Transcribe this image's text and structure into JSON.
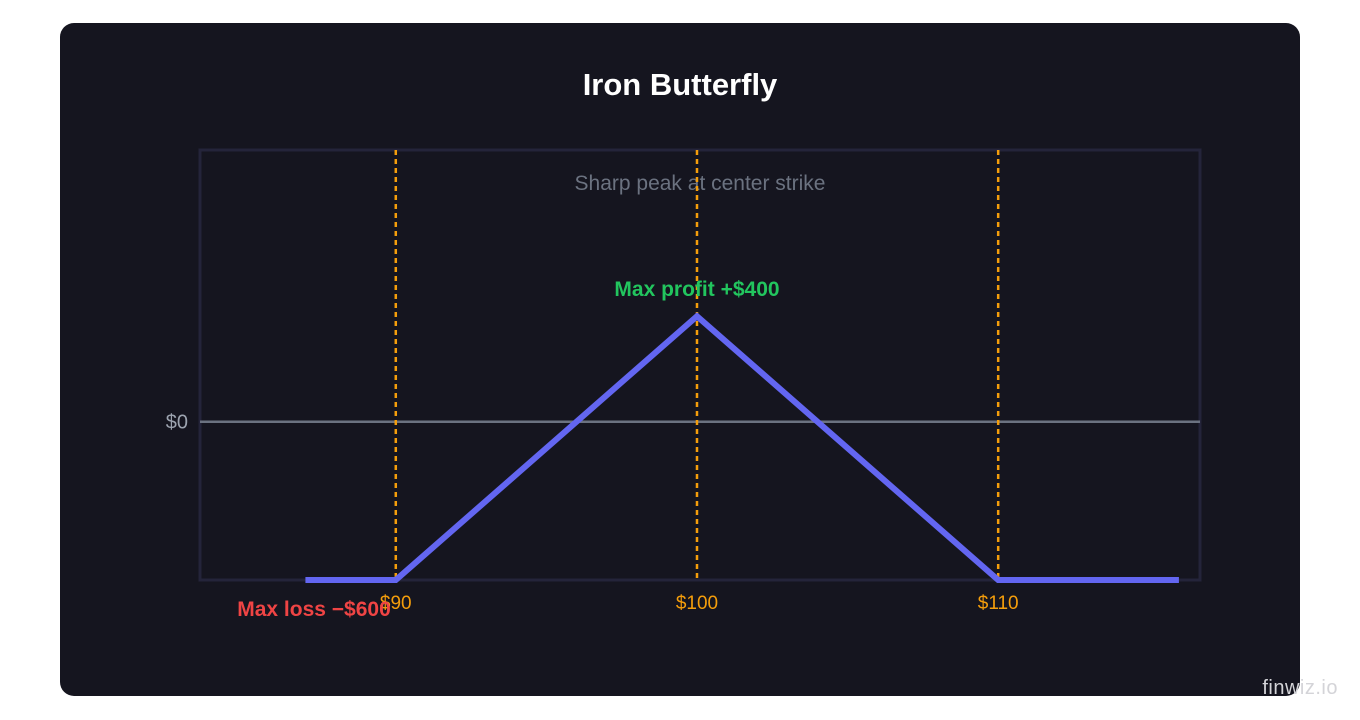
{
  "title": "Iron Butterfly",
  "watermark": "finwiz.io",
  "chart_data": {
    "type": "line",
    "title": "Iron Butterfly",
    "subtitle": "Sharp peak at center strike",
    "x": [
      87,
      90,
      100,
      110,
      116
    ],
    "series": [
      {
        "values": [
          -600,
          -600,
          400,
          -600,
          -600
        ]
      }
    ],
    "xlim": [
      83.5,
      116.7
    ],
    "ylim": [
      -600,
      1030
    ],
    "x_ticks": [
      {
        "value": 90,
        "label": "$90"
      },
      {
        "value": 100,
        "label": "$100"
      },
      {
        "value": 110,
        "label": "$110"
      }
    ],
    "y_ticks": [
      {
        "value": 0,
        "label": "$0"
      }
    ],
    "strike_lines": [
      90,
      100,
      110
    ],
    "annotations": [
      {
        "text": "Max profit +$400",
        "x": 100,
        "y": 400,
        "color": "#22c55e"
      },
      {
        "text": "Max loss −$600",
        "x": 90,
        "y": -600,
        "color": "#ef4444"
      }
    ],
    "colors": {
      "payoff": "#6366f1",
      "strike": "#f59e0b",
      "zero_line": "#6b7280",
      "frame": "#24243a",
      "subtitle": "#6b7280",
      "tick": "#9ca3af"
    }
  }
}
